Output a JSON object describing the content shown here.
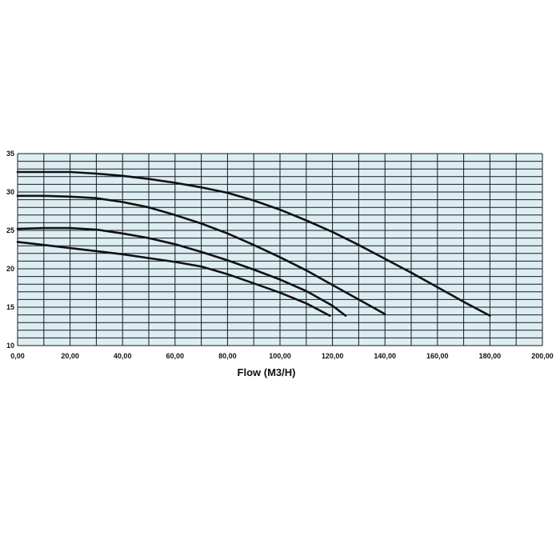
{
  "chart_data": {
    "type": "line",
    "title": "",
    "xlabel": "Flow (M3/H)",
    "ylabel": "",
    "xlim": [
      0,
      200
    ],
    "ylim": [
      10,
      35
    ],
    "x_ticks": [
      "0,00",
      "20,00",
      "40,00",
      "60,00",
      "80,00",
      "100,00",
      "120,00",
      "140,00",
      "160,00",
      "180,00",
      "200,00"
    ],
    "y_ticks": [
      "10",
      "15",
      "20",
      "25",
      "30",
      "35"
    ],
    "grid": true,
    "legend": "none",
    "colors": {
      "plot_background": "#dcedf3",
      "grid": "#1a1a1a",
      "line": "#111111"
    },
    "series": [
      {
        "x": [
          0,
          10,
          20,
          30,
          40,
          50,
          60,
          70,
          80,
          90,
          100,
          110,
          120,
          130,
          140,
          150,
          160,
          170,
          180
        ],
        "y": [
          32.6,
          32.6,
          32.6,
          32.4,
          32.1,
          31.7,
          31.2,
          30.6,
          29.9,
          28.9,
          27.7,
          26.3,
          24.8,
          23.1,
          21.3,
          19.5,
          17.6,
          15.7,
          13.9
        ]
      },
      {
        "x": [
          0,
          10,
          20,
          30,
          40,
          50,
          60,
          70,
          80,
          90,
          100,
          110,
          120,
          130,
          140
        ],
        "y": [
          29.5,
          29.5,
          29.4,
          29.2,
          28.7,
          28.0,
          27.0,
          25.9,
          24.6,
          23.1,
          21.5,
          19.8,
          17.9,
          16.0,
          14.1
        ]
      },
      {
        "x": [
          0,
          10,
          20,
          30,
          40,
          50,
          60,
          70,
          80,
          90,
          100,
          110,
          120,
          125
        ],
        "y": [
          25.2,
          25.3,
          25.3,
          25.1,
          24.6,
          24.0,
          23.2,
          22.2,
          21.1,
          19.9,
          18.6,
          17.1,
          15.2,
          13.9
        ]
      },
      {
        "x": [
          0,
          10,
          20,
          30,
          40,
          50,
          60,
          70,
          80,
          90,
          100,
          110,
          119
        ],
        "y": [
          23.5,
          23.1,
          22.7,
          22.3,
          21.9,
          21.4,
          20.9,
          20.3,
          19.3,
          18.1,
          16.9,
          15.5,
          13.9
        ]
      }
    ]
  }
}
